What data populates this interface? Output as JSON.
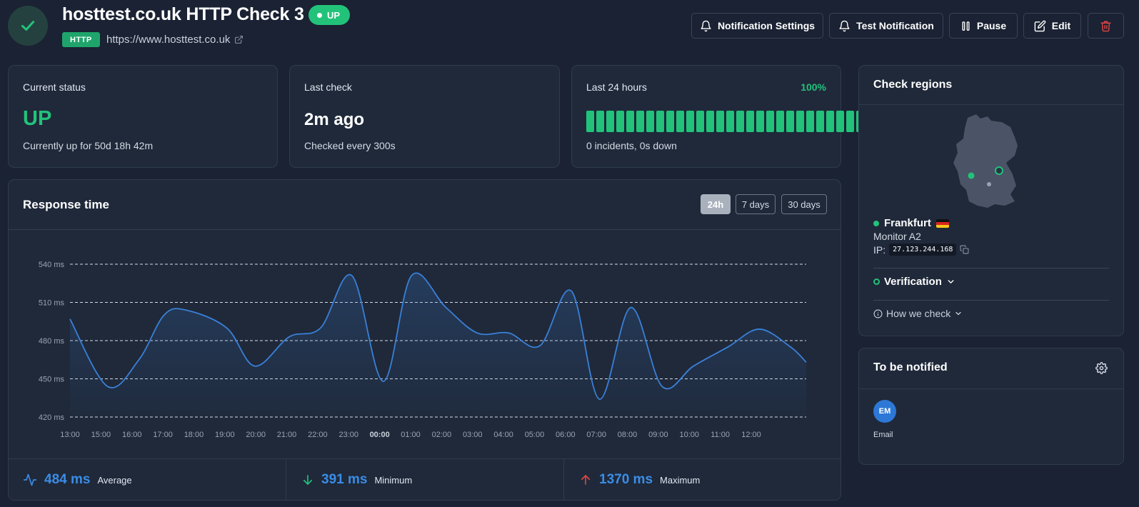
{
  "header": {
    "title": "hosttest.co.uk HTTP Check 3",
    "status_badge": "UP",
    "protocol": "HTTP",
    "url": "https://www.hosttest.co.uk"
  },
  "toolbar": {
    "notification_settings": "Notification Settings",
    "test_notification": "Test Notification",
    "pause": "Pause",
    "edit": "Edit"
  },
  "current_status": {
    "label": "Current status",
    "value": "UP",
    "sub": "Currently up for 50d 18h 42m"
  },
  "last_check": {
    "label": "Last check",
    "value": "2m ago",
    "sub": "Checked every 300s"
  },
  "last_24h": {
    "label": "Last 24 hours",
    "percent": "100%",
    "bars": 30,
    "sub": "0 incidents, 0s down"
  },
  "response_time": {
    "title": "Response time",
    "ranges": [
      "24h",
      "7 days",
      "30 days"
    ],
    "active_range": "24h",
    "stats": {
      "average_value": "484 ms",
      "average_label": "Average",
      "minimum_value": "391 ms",
      "minimum_label": "Minimum",
      "maximum_value": "1370 ms",
      "maximum_label": "Maximum"
    }
  },
  "chart_data": {
    "type": "area",
    "title": "",
    "xlabel": "",
    "ylabel": "",
    "x_ticks": [
      "13:00",
      "15:00",
      "16:00",
      "17:00",
      "18:00",
      "19:00",
      "20:00",
      "21:00",
      "22:00",
      "23:00",
      "00:00",
      "01:00",
      "02:00",
      "03:00",
      "04:00",
      "05:00",
      "06:00",
      "07:00",
      "08:00",
      "09:00",
      "10:00",
      "11:00",
      "12:00"
    ],
    "y_ticks": [
      "540 ms",
      "510 ms",
      "480 ms",
      "450 ms",
      "420 ms"
    ],
    "ylim": [
      420,
      540
    ],
    "xlim": [
      13,
      36.5
    ],
    "x": [
      13,
      14.2,
      15.2,
      16.0,
      16.7,
      18.0,
      18.9,
      20.0,
      21.0,
      22.0,
      23.0,
      23.9,
      25.0,
      26.0,
      27.0,
      28.0,
      29.0,
      29.9,
      30.9,
      31.9,
      32.9,
      34.0,
      35.0,
      36.0,
      36.5
    ],
    "y": [
      497,
      444,
      465,
      500,
      504,
      490,
      460,
      483,
      490,
      531,
      448,
      531,
      506,
      486,
      486,
      476,
      519,
      434,
      506,
      444,
      460,
      475,
      489,
      475,
      463
    ],
    "grid": true,
    "color": "#3a80d8"
  },
  "check_regions": {
    "title": "Check regions",
    "location": "Frankfurt",
    "flag": "🇩🇪",
    "monitor": "Monitor A2",
    "ip_label": "IP:",
    "ip": "27.123.244.168",
    "verification": "Verification",
    "how_we_check": "How we check"
  },
  "notified": {
    "title": "To be notified",
    "avatar_initials": "EM",
    "avatar_label": "Email"
  },
  "colors": {
    "background": "#1a2233",
    "card": "#1f293a",
    "green": "#22c27a",
    "blue": "#3b8de6",
    "red": "#e04545"
  }
}
